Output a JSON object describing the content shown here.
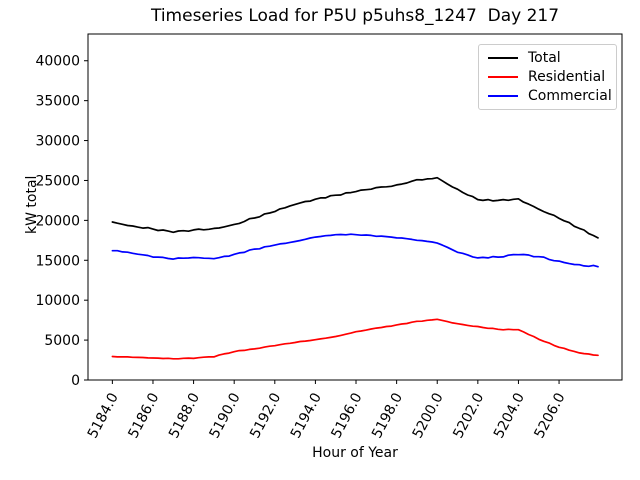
{
  "title": "Timeseries Load for P5U p5uhs8_1247  Day 217",
  "chart_data": {
    "type": "line",
    "title": "Timeseries Load for P5U p5uhs8_1247  Day 217",
    "xlabel": "Hour of Year",
    "ylabel": "kW total",
    "xlim": [
      5182.8,
      5209.1
    ],
    "ylim": [
      0,
      43350
    ],
    "grid": false,
    "legend_position": "upper right",
    "x_tick_rotation": 62,
    "x_ticks": [
      5184,
      5186,
      5188,
      5190,
      5192,
      5194,
      5196,
      5198,
      5200,
      5202,
      5204,
      5206
    ],
    "x_tick_labels": [
      "5184.0",
      "5186.0",
      "5188.0",
      "5190.0",
      "5192.0",
      "5194.0",
      "5196.0",
      "5198.0",
      "5200.0",
      "5202.0",
      "5204.0",
      "5206.0"
    ],
    "y_ticks": [
      0,
      5000,
      10000,
      15000,
      20000,
      25000,
      30000,
      35000,
      40000
    ],
    "y_tick_labels": [
      "0",
      "5000",
      "10000",
      "15000",
      "20000",
      "25000",
      "30000",
      "35000",
      "40000"
    ],
    "x": [
      5184,
      5185,
      5186,
      5187,
      5188,
      5189,
      5190,
      5191,
      5192,
      5193,
      5194,
      5195,
      5196,
      5197,
      5198,
      5199,
      5200,
      5201,
      5202,
      5203,
      5204,
      5205,
      5206,
      5207,
      5207.92
    ],
    "series": [
      {
        "name": "Total",
        "color": "#000000",
        "values": [
          19800,
          19300,
          18900,
          18500,
          18800,
          19000,
          19500,
          20300,
          21100,
          22000,
          22650,
          23150,
          23600,
          24100,
          24450,
          25100,
          25350,
          23900,
          22600,
          22500,
          22700,
          21400,
          20250,
          19000,
          17800
        ]
      },
      {
        "name": "Residential",
        "color": "#ff0000",
        "values": [
          2950,
          2850,
          2760,
          2650,
          2700,
          2900,
          3550,
          3900,
          4300,
          4700,
          5050,
          5450,
          6050,
          6500,
          6900,
          7350,
          7600,
          7050,
          6700,
          6350,
          6300,
          5100,
          4100,
          3400,
          3100
        ]
      },
      {
        "name": "Commercial",
        "color": "#0000ff",
        "values": [
          16200,
          15870,
          15400,
          15150,
          15350,
          15200,
          15750,
          16400,
          16900,
          17350,
          17900,
          18200,
          18200,
          18000,
          17800,
          17500,
          17150,
          16000,
          15300,
          15400,
          15700,
          15450,
          14900,
          14450,
          14200
        ]
      }
    ]
  }
}
